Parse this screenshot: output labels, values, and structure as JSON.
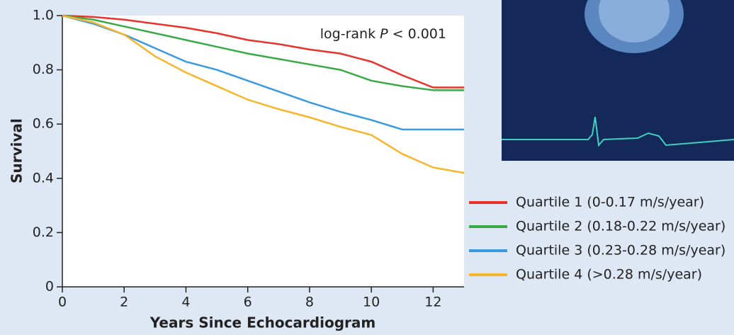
{
  "chart_data": {
    "type": "line",
    "x_label": "Years Since Echocardiogram",
    "y_label": "Survival",
    "annotation": {
      "prefix": "log-rank ",
      "italic": "P",
      "suffix": " < 0.001"
    },
    "x": [
      0,
      1,
      2,
      3,
      4,
      5,
      6,
      7,
      8,
      9,
      10,
      11,
      12,
      13
    ],
    "series": [
      {
        "name": "Quartile 1 (0-0.17 m/s/year)",
        "color": "#e8322b",
        "values": [
          1,
          0.995,
          0.985,
          0.97,
          0.955,
          0.935,
          0.91,
          0.895,
          0.875,
          0.86,
          0.83,
          0.78,
          0.735,
          0.735
        ]
      },
      {
        "name": "Quartile 2 (0.18-0.22 m/s/year)",
        "color": "#3aaa48",
        "values": [
          1,
          0.985,
          0.96,
          0.935,
          0.91,
          0.885,
          0.86,
          0.84,
          0.82,
          0.8,
          0.76,
          0.74,
          0.725,
          0.725
        ]
      },
      {
        "name": "Quartile 3 (0.23-0.28 m/s/year)",
        "color": "#3a9ae0",
        "values": [
          1,
          0.97,
          0.93,
          0.88,
          0.83,
          0.8,
          0.76,
          0.72,
          0.68,
          0.645,
          0.615,
          0.58,
          0.58,
          0.58
        ]
      },
      {
        "name": "Quartile 4 (>0.28 m/s/year)",
        "color": "#f7b52c",
        "values": [
          1,
          0.975,
          0.93,
          0.85,
          0.79,
          0.74,
          0.69,
          0.655,
          0.625,
          0.59,
          0.56,
          0.49,
          0.44,
          0.42
        ]
      }
    ],
    "xlim": [
      0,
      13
    ],
    "xticks": [
      0,
      2,
      4,
      6,
      8,
      10,
      12
    ],
    "ylim": [
      0,
      1
    ],
    "yticks": [
      0,
      0.2,
      0.4,
      0.6,
      0.8,
      {
        "value": 1,
        "label": "1.0"
      }
    ],
    "grid": false
  }
}
